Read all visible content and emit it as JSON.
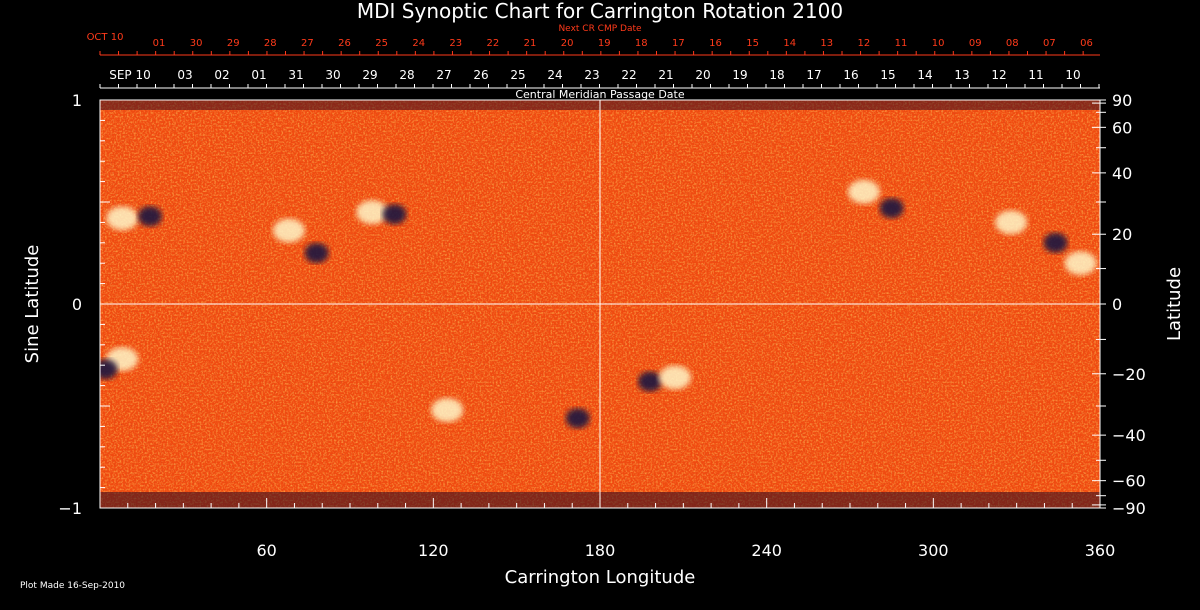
{
  "chart_data": {
    "type": "heatmap",
    "title": "MDI Synoptic Chart for Carrington Rotation 2100",
    "xlabel": "Carrington Longitude",
    "ylabel_left": "Sine Latitude",
    "ylabel_right": "Latitude",
    "xlim": [
      0,
      360
    ],
    "ylim": [
      -1,
      1
    ],
    "x_ticks": [
      60,
      120,
      180,
      240,
      300,
      360
    ],
    "y_ticks_left": [
      {
        "value": 1,
        "label": "1"
      },
      {
        "value": 0,
        "label": "0"
      },
      {
        "value": -1,
        "label": "−1"
      }
    ],
    "y_ticks_right": [
      {
        "deg": 90,
        "label": "90"
      },
      {
        "deg": 60,
        "label": "60"
      },
      {
        "deg": 40,
        "label": "40"
      },
      {
        "deg": 20,
        "label": "20"
      },
      {
        "deg": 0,
        "label": "0"
      },
      {
        "deg": -20,
        "label": "−20"
      },
      {
        "deg": -40,
        "label": "−40"
      },
      {
        "deg": -60,
        "label": "−60"
      },
      {
        "deg": -90,
        "label": "−90"
      }
    ],
    "cmp_axis_label": "Central Meridian Passage Date",
    "next_cr_axis_label": "Next CR CMP Date",
    "cmp_dates": [
      "SEP 10",
      "03",
      "02",
      "01",
      "31",
      "30",
      "29",
      "28",
      "27",
      "26",
      "25",
      "24",
      "23",
      "22",
      "21",
      "20",
      "19",
      "18",
      "17",
      "16",
      "15",
      "14",
      "13",
      "12",
      "11",
      "10"
    ],
    "next_cr_dates": [
      "OCT 10",
      "01",
      "30",
      "29",
      "28",
      "27",
      "26",
      "25",
      "24",
      "23",
      "22",
      "21",
      "20",
      "19",
      "18",
      "17",
      "16",
      "15",
      "14",
      "13",
      "12",
      "11",
      "10",
      "09",
      "08",
      "07",
      "06"
    ],
    "colors": {
      "background_field": "#f04a10",
      "positive_polarity": "#fff6c8",
      "negative_polarity": "#1a1240",
      "axis_text": "#ffffff",
      "next_cr_text": "#ff3a1a"
    },
    "active_regions": [
      {
        "lon": 8,
        "sinlat": 0.42,
        "polarity": "positive"
      },
      {
        "lon": 18,
        "sinlat": 0.43,
        "polarity": "negative"
      },
      {
        "lon": 68,
        "sinlat": 0.36,
        "polarity": "positive"
      },
      {
        "lon": 78,
        "sinlat": 0.25,
        "polarity": "negative"
      },
      {
        "lon": 98,
        "sinlat": 0.45,
        "polarity": "positive"
      },
      {
        "lon": 106,
        "sinlat": 0.44,
        "polarity": "negative"
      },
      {
        "lon": 275,
        "sinlat": 0.55,
        "polarity": "positive"
      },
      {
        "lon": 285,
        "sinlat": 0.47,
        "polarity": "negative"
      },
      {
        "lon": 328,
        "sinlat": 0.4,
        "polarity": "positive"
      },
      {
        "lon": 344,
        "sinlat": 0.3,
        "polarity": "negative"
      },
      {
        "lon": 353,
        "sinlat": 0.2,
        "polarity": "positive"
      },
      {
        "lon": 8,
        "sinlat": -0.27,
        "polarity": "positive"
      },
      {
        "lon": 2,
        "sinlat": -0.32,
        "polarity": "negative"
      },
      {
        "lon": 198,
        "sinlat": -0.38,
        "polarity": "negative"
      },
      {
        "lon": 207,
        "sinlat": -0.36,
        "polarity": "positive"
      },
      {
        "lon": 125,
        "sinlat": -0.52,
        "polarity": "positive"
      },
      {
        "lon": 172,
        "sinlat": -0.56,
        "polarity": "negative"
      }
    ]
  },
  "footer": {
    "plot_made": "Plot Made 16-Sep-2010"
  }
}
